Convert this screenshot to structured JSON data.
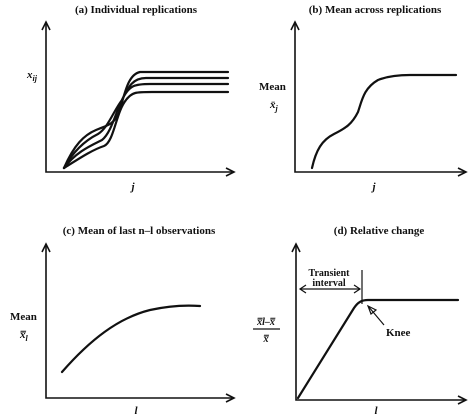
{
  "panels": {
    "a": {
      "title": "(a) Individual replications",
      "ylabel": "x",
      "ylabel_sub": "ij",
      "xlabel": "j"
    },
    "b": {
      "title": "(b) Mean across replications",
      "ylabel_word": "Mean",
      "ylabel_sym": "x̄",
      "ylabel_sub": "j",
      "xlabel": "j"
    },
    "c": {
      "title": "(c) Mean of last n–l observations",
      "ylabel_word": "Mean",
      "ylabel_sym": "x̿",
      "ylabel_sub": "l",
      "xlabel": "l"
    },
    "d": {
      "title": "(d) Relative change",
      "ylabel_num": "x̿l–x̿",
      "ylabel_den": "x̿",
      "xlabel": "l",
      "annotation_transient_1": "Transient",
      "annotation_transient_2": "interval",
      "annotation_knee": "Knee"
    }
  },
  "chart_data": [
    {
      "type": "line",
      "title": "(a) Individual replications",
      "xlabel": "j",
      "ylabel": "x_ij",
      "series": [
        {
          "x": [
            0,
            0.1,
            0.25,
            0.4,
            0.55,
            0.65,
            1.0
          ],
          "y": [
            0,
            0.25,
            0.3,
            0.32,
            0.62,
            0.72,
            0.72
          ]
        },
        {
          "x": [
            0,
            0.1,
            0.25,
            0.4,
            0.55,
            0.65,
            1.0
          ],
          "y": [
            0,
            0.22,
            0.34,
            0.4,
            0.6,
            0.69,
            0.69
          ]
        },
        {
          "x": [
            0,
            0.1,
            0.25,
            0.4,
            0.55,
            0.65,
            1.0
          ],
          "y": [
            0,
            0.18,
            0.28,
            0.45,
            0.58,
            0.66,
            0.66
          ]
        },
        {
          "x": [
            0,
            0.1,
            0.25,
            0.4,
            0.55,
            0.65,
            1.0
          ],
          "y": [
            0,
            0.15,
            0.22,
            0.5,
            0.56,
            0.63,
            0.63
          ]
        }
      ]
    },
    {
      "type": "line",
      "title": "(b) Mean across replications",
      "xlabel": "j",
      "ylabel": "Mean x̄_j",
      "series": [
        {
          "x": [
            0,
            0.05,
            0.2,
            0.3,
            0.4,
            0.45,
            0.55,
            0.7,
            1.0
          ],
          "y": [
            0,
            0.2,
            0.3,
            0.33,
            0.45,
            0.58,
            0.68,
            0.72,
            0.72
          ]
        }
      ]
    },
    {
      "type": "line",
      "title": "(c) Mean of last n–l observations",
      "xlabel": "l",
      "ylabel": "Mean x̿_l",
      "series": [
        {
          "x": [
            0,
            0.2,
            0.4,
            0.6,
            0.8,
            1.0
          ],
          "y": [
            0.1,
            0.35,
            0.52,
            0.62,
            0.67,
            0.68
          ]
        }
      ]
    },
    {
      "type": "line",
      "title": "(d) Relative change",
      "xlabel": "l",
      "ylabel": "(x̿_l – x̿) / x̿",
      "series": [
        {
          "x": [
            0,
            0.38,
            0.44,
            0.5,
            1.0
          ],
          "y": [
            0,
            0.7,
            0.74,
            0.74,
            0.74
          ]
        }
      ],
      "annotations": [
        "Transient interval",
        "Knee"
      ]
    }
  ]
}
